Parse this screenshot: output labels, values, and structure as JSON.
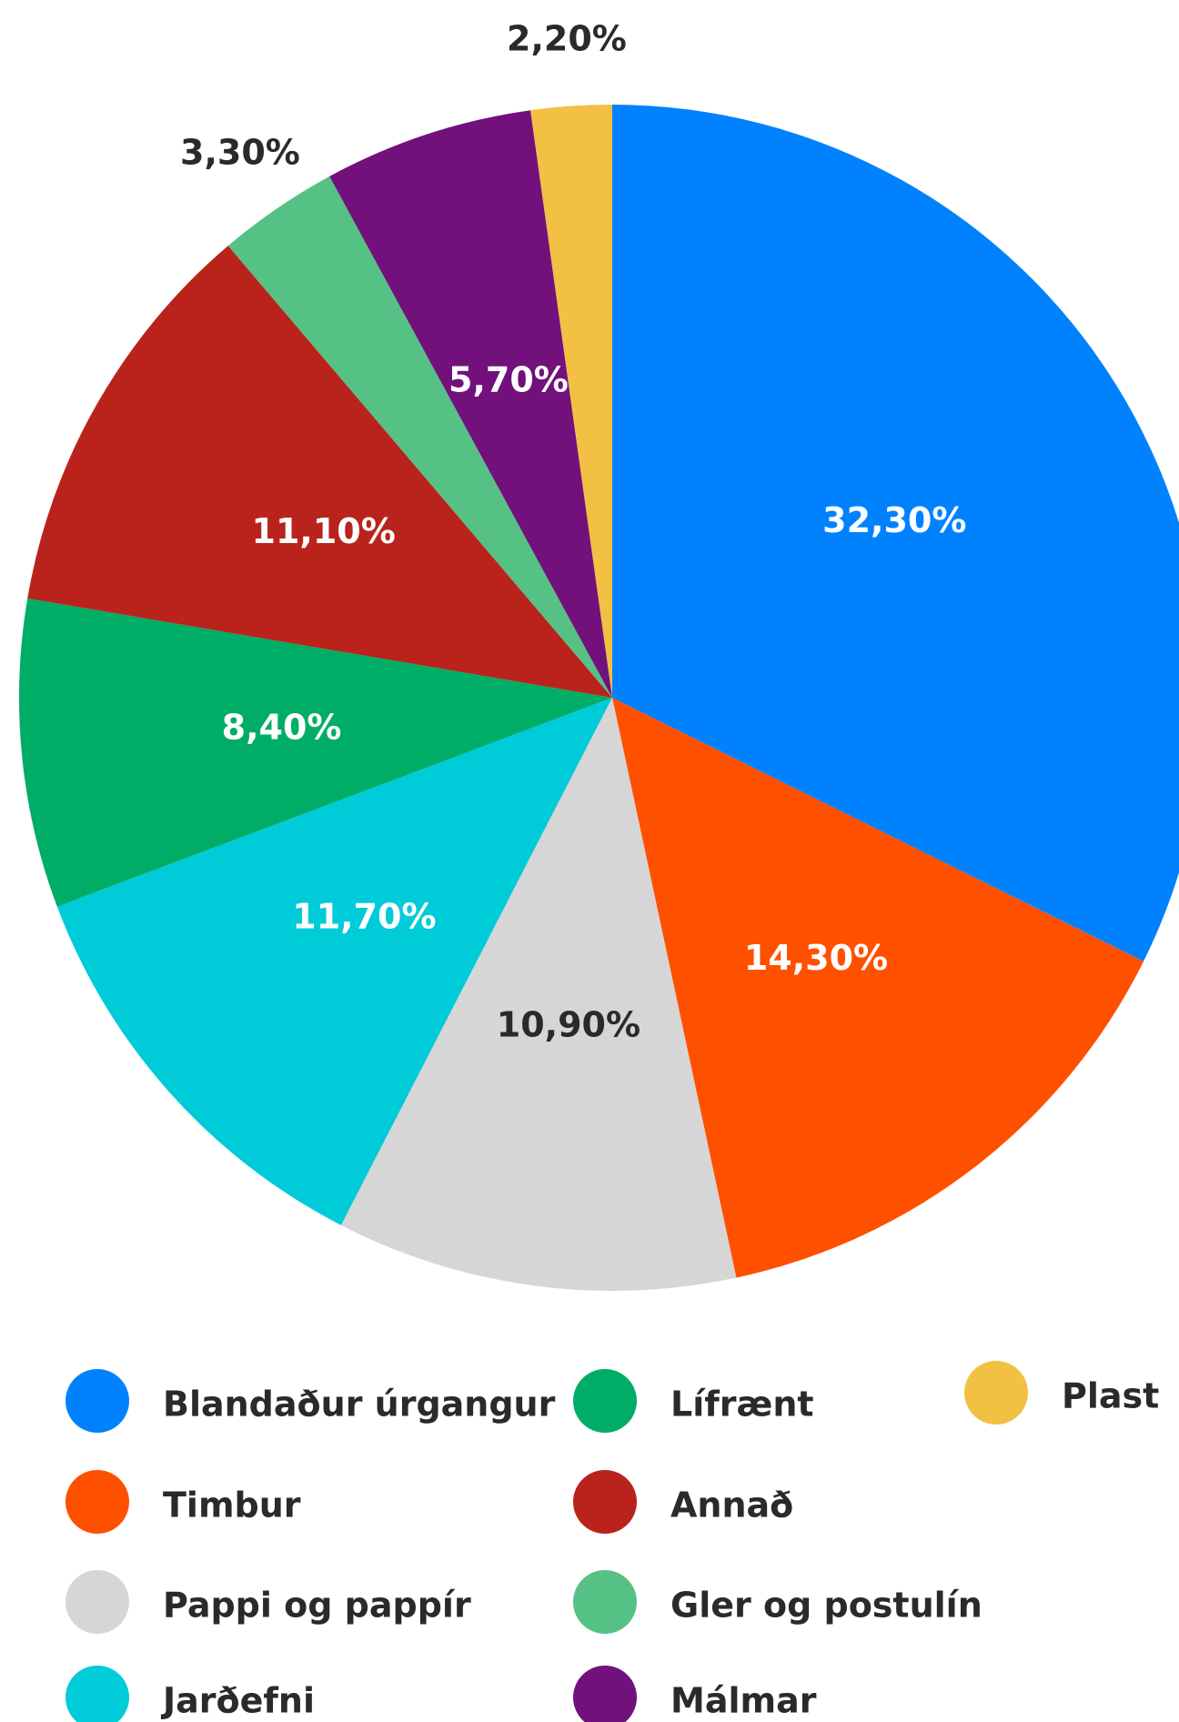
{
  "chart_data": {
    "type": "pie",
    "categories": [
      "Blandaður úrgangur",
      "Timbur",
      "Pappi og pappír",
      "Jarðefni",
      "Lífrænt",
      "Annað",
      "Gler og postulín",
      "Málmar",
      "Plast"
    ],
    "values": [
      32.3,
      14.3,
      10.9,
      11.7,
      8.4,
      11.1,
      3.3,
      5.7,
      2.2
    ],
    "value_labels": [
      "32,30%",
      "14,30%",
      "10,90%",
      "11,70%",
      "8,40%",
      "11,10%",
      "3,30%",
      "5,70%",
      "2,20%"
    ],
    "colors": [
      "#0082ff",
      "#ff5000",
      "#d6d6d6",
      "#00cbd9",
      "#00ad66",
      "#b9231b",
      "#56c184",
      "#72117b",
      "#f2c043"
    ]
  }
}
